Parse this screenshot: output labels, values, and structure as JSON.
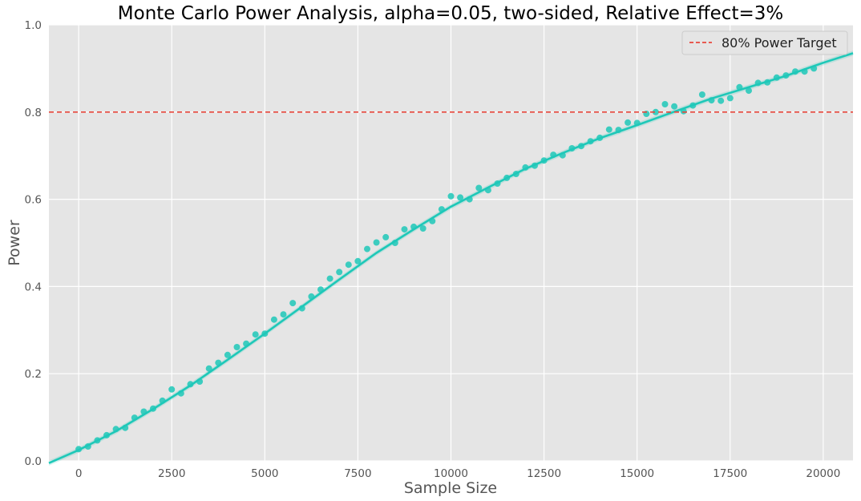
{
  "chart_data": {
    "type": "scatter",
    "title": "Monte Carlo Power Analysis, alpha=0.05, two-sided, Relative Effect=3%",
    "xlabel": "Sample Size",
    "ylabel": "Power",
    "xlim": [
      -800,
      20800
    ],
    "ylim": [
      0,
      1.0
    ],
    "xticks": [
      0,
      2500,
      5000,
      7500,
      10000,
      12500,
      15000,
      17500,
      20000
    ],
    "yticks": [
      0.0,
      0.2,
      0.4,
      0.6,
      0.8,
      1.0
    ],
    "grid": true,
    "background_color": "#e5e5e5",
    "series_color": "#1ec8b8",
    "target_line": {
      "y": 0.8,
      "label": "80% Power Target",
      "color": "#e8473c",
      "style": "dashed"
    },
    "legend_position": "top-right",
    "points": {
      "x": [
        0,
        250,
        500,
        750,
        1000,
        1250,
        1500,
        1750,
        2000,
        2250,
        2500,
        2750,
        3000,
        3250,
        3500,
        3750,
        4000,
        4250,
        4500,
        4750,
        5000,
        5250,
        5500,
        5750,
        6000,
        6250,
        6500,
        6750,
        7000,
        7250,
        7500,
        7750,
        8000,
        8250,
        8500,
        8750,
        9000,
        9250,
        9500,
        9750,
        10000,
        10250,
        10500,
        10750,
        11000,
        11250,
        11500,
        11750,
        12000,
        12250,
        12500,
        12750,
        13000,
        13250,
        13500,
        13750,
        14000,
        14250,
        14500,
        14750,
        15000,
        15250,
        15500,
        15750,
        16000,
        16250,
        16500,
        16750,
        17000,
        17250,
        17500,
        17750,
        18000,
        18250,
        18500,
        18750,
        19000,
        19250,
        19500,
        19750
      ],
      "y": [
        0.027,
        0.033,
        0.047,
        0.059,
        0.073,
        0.076,
        0.099,
        0.113,
        0.12,
        0.138,
        0.164,
        0.155,
        0.176,
        0.182,
        0.212,
        0.225,
        0.243,
        0.261,
        0.269,
        0.29,
        0.292,
        0.324,
        0.336,
        0.362,
        0.35,
        0.377,
        0.393,
        0.418,
        0.433,
        0.45,
        0.458,
        0.486,
        0.501,
        0.513,
        0.5,
        0.531,
        0.537,
        0.533,
        0.55,
        0.577,
        0.607,
        0.604,
        0.6,
        0.626,
        0.621,
        0.636,
        0.649,
        0.658,
        0.673,
        0.677,
        0.689,
        0.702,
        0.701,
        0.717,
        0.722,
        0.733,
        0.741,
        0.76,
        0.759,
        0.776,
        0.775,
        0.796,
        0.8,
        0.818,
        0.813,
        0.802,
        0.815,
        0.84,
        0.827,
        0.826,
        0.832,
        0.857,
        0.849,
        0.867,
        0.868,
        0.879,
        0.884,
        0.893,
        0.893,
        0.9
      ]
    },
    "fit": {
      "x": [
        -800,
        0,
        1000,
        2000,
        3000,
        4000,
        5000,
        6000,
        7000,
        8000,
        9000,
        10000,
        11000,
        12000,
        13000,
        14000,
        15000,
        16000,
        17000,
        18000,
        19000,
        20000,
        20800
      ],
      "y": [
        -0.005,
        0.025,
        0.068,
        0.119,
        0.173,
        0.232,
        0.292,
        0.354,
        0.416,
        0.477,
        0.531,
        0.583,
        0.627,
        0.67,
        0.706,
        0.74,
        0.77,
        0.801,
        0.831,
        0.857,
        0.883,
        0.913,
        0.935
      ]
    }
  }
}
